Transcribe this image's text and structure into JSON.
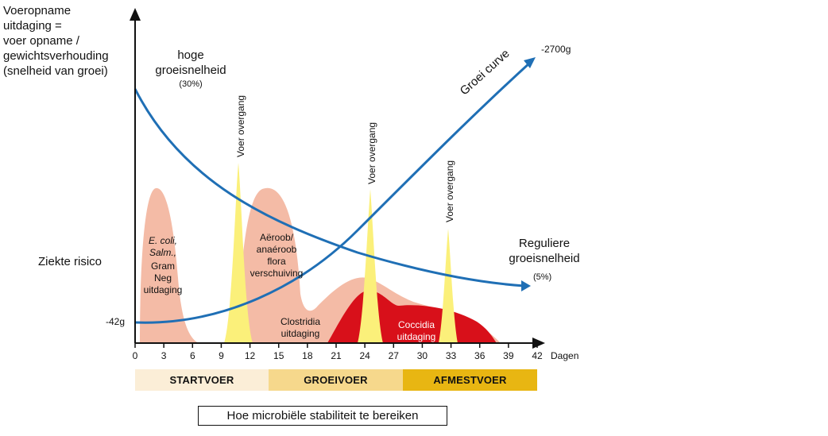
{
  "y_axis_label": "Voeropname\nuitdaging =\nvoer opname /\ngewichtsverhouding\n(snelheid van groei)",
  "high_growth": {
    "label": "hoge\ngroeisnelheid",
    "pct": "(30%)"
  },
  "regular_growth": {
    "label": "Reguliere\ngroeisnelheid",
    "pct": "(5%)"
  },
  "growth_curve_label": "Groei curve",
  "end_weight": "-2700g",
  "start_weight": "-42g",
  "disease_risk_label": "Ziekte risico",
  "feed_transition_label": "Voer overgang",
  "challenges": {
    "ecoli": "E. coli,\nSalm.,",
    "gram": "Gram\nNeg\nuitdaging",
    "aerobic": "Aëroob/\nanaéroob\nflora\nverschuiving",
    "clostridia": "Clostridia\nuitdaging",
    "coccidia": "Coccidia\nuitdaging"
  },
  "x_axis_unit": "Dagen",
  "chart_data": {
    "type": "line",
    "x_ticks": [
      0,
      3,
      6,
      9,
      12,
      15,
      18,
      21,
      24,
      27,
      30,
      33,
      36,
      39,
      42
    ],
    "x_label": "Dagen",
    "series": [
      {
        "name": "Groei curve",
        "x": [
          0,
          3,
          6,
          9,
          12,
          15,
          18,
          21,
          24,
          27,
          30,
          33,
          36,
          39,
          42
        ],
        "y": [
          42,
          60,
          120,
          220,
          380,
          560,
          760,
          960,
          1180,
          1420,
          1680,
          1940,
          2200,
          2450,
          2700
        ]
      }
    ],
    "feed_transitions_day": [
      11,
      24.5,
      33
    ]
  },
  "feed_phases": [
    {
      "label": "STARTVOER",
      "color": "#fbeed7"
    },
    {
      "label": "GROEIVOER",
      "color": "#f6d88c"
    },
    {
      "label": "AFMESTVOER",
      "color": "#e8b612"
    }
  ],
  "caption": "Hoe microbiële stabiliteit te bereiken",
  "colors": {
    "curve": "#1f6fb5",
    "light_risk": "#f4bba6",
    "dark_risk": "#d8101a",
    "transition": "#fbf07a"
  }
}
